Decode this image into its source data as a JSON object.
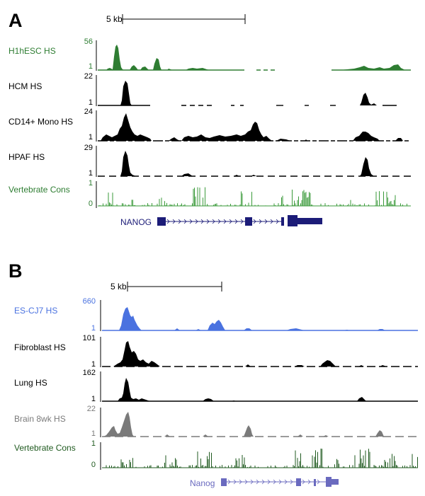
{
  "panels": [
    {
      "letter": "A",
      "scale_label": "5 kb",
      "gene": "NANOG",
      "gene_color": "#1c1c78",
      "tracks": [
        {
          "label": "H1hESC HS",
          "max": "56",
          "min": "1",
          "color": "#2e7d32"
        },
        {
          "label": "HCM HS",
          "max": "22",
          "min": "1",
          "color": "#000000"
        },
        {
          "label": "CD14+ Mono HS",
          "max": "24",
          "min": "1",
          "color": "#000000"
        },
        {
          "label": "HPAF HS",
          "max": "29",
          "min": "1",
          "color": "#000000"
        },
        {
          "label": "Vertebrate Cons",
          "max": "1",
          "min": "0",
          "color": "#3a9a3a"
        }
      ]
    },
    {
      "letter": "B",
      "scale_label": "5 kb",
      "gene": "Nanog",
      "gene_color": "#6a6abf",
      "tracks": [
        {
          "label": "ES-CJ7 HS",
          "max": "660",
          "min": "1",
          "color": "#4a72e0"
        },
        {
          "label": "Fibroblast HS",
          "max": "101",
          "min": "1",
          "color": "#000000"
        },
        {
          "label": "Lung HS",
          "max": "162",
          "min": "1",
          "color": "#000000"
        },
        {
          "label": "Brain 8wk HS",
          "max": "22",
          "min": "1",
          "color": "#7a7a7a"
        },
        {
          "label": "Vertebrate Cons",
          "max": "1",
          "min": "0",
          "color": "#1f5a1f"
        }
      ]
    }
  ]
}
